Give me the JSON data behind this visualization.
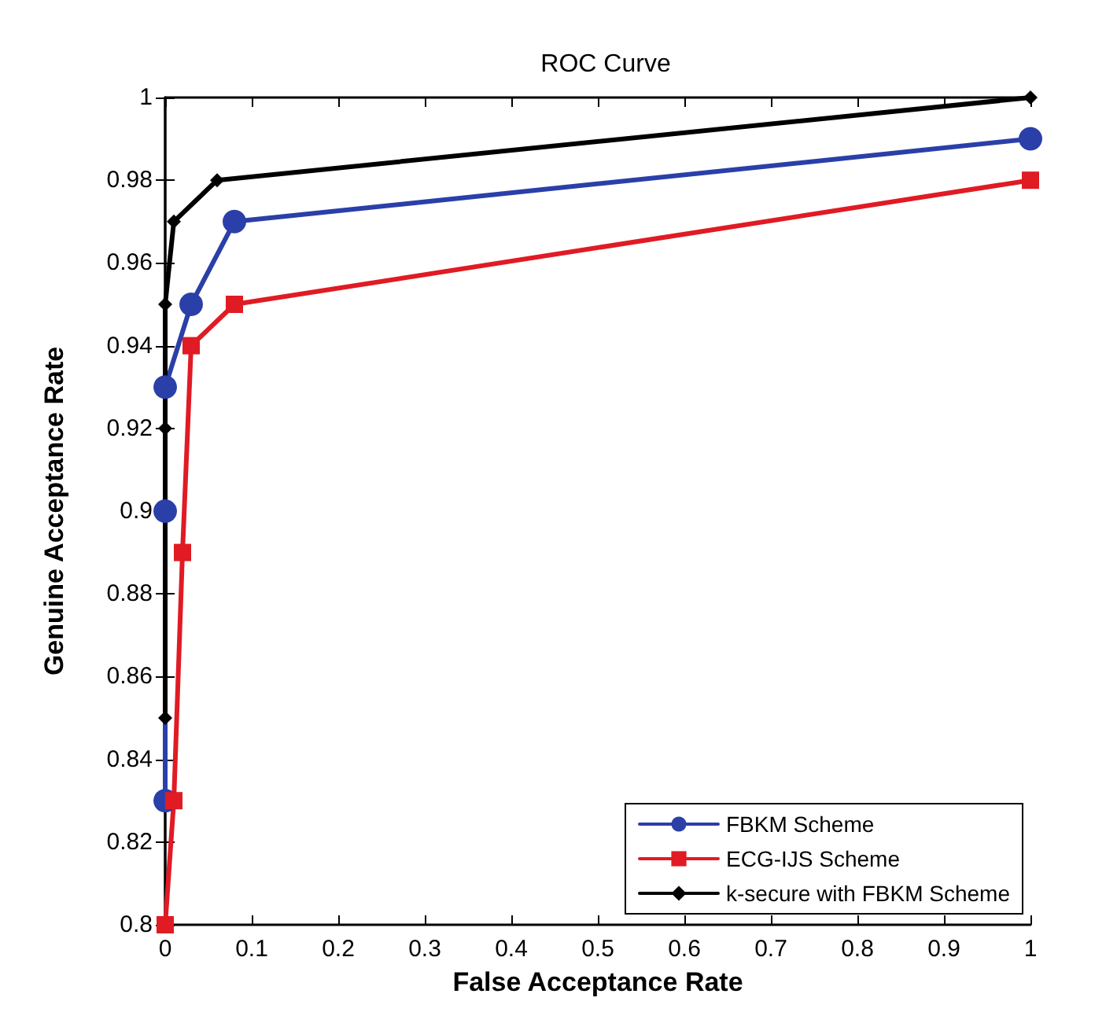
{
  "chart_data": {
    "type": "line",
    "title": "ROC Curve",
    "xlabel": "False Acceptance Rate",
    "ylabel": "Genuine Acceptance Rate",
    "xlim": [
      0,
      1
    ],
    "xticks": [
      0,
      0.1,
      0.2,
      0.3,
      0.4,
      0.5,
      0.6,
      0.7,
      0.8,
      0.9,
      1
    ],
    "ylim": [
      0.8,
      1
    ],
    "yticks": [
      0.8,
      0.82,
      0.84,
      0.86,
      0.88,
      0.9,
      0.92,
      0.94,
      0.96,
      0.98,
      1
    ],
    "grid": false,
    "legend": "bottom right",
    "line_style": "solid",
    "series": [
      {
        "name": "FBKM Scheme",
        "color": "#2b3fa8",
        "marker": "circle",
        "x": [
          0,
          0,
          0,
          0.03,
          0.08,
          1
        ],
        "values": [
          0.83,
          0.9,
          0.93,
          0.95,
          0.97,
          0.99
        ]
      },
      {
        "name": "ECG-IJS Scheme",
        "color": "#e01b24",
        "marker": "square",
        "x": [
          0,
          0.01,
          0.02,
          0.03,
          0.08,
          1
        ],
        "values": [
          0.8,
          0.83,
          0.89,
          0.94,
          0.95,
          0.98
        ]
      },
      {
        "name": "k-secure with FBKM Scheme",
        "color": "#000000",
        "marker": "diamond",
        "x": [
          0,
          0,
          0,
          0.01,
          0.06,
          1
        ],
        "values": [
          0.85,
          0.92,
          0.95,
          0.97,
          0.98,
          1
        ]
      }
    ]
  }
}
